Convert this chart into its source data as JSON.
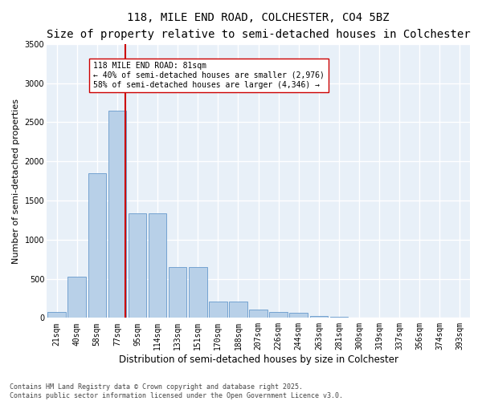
{
  "title": "118, MILE END ROAD, COLCHESTER, CO4 5BZ",
  "subtitle": "Size of property relative to semi-detached houses in Colchester",
  "xlabel": "Distribution of semi-detached houses by size in Colchester",
  "ylabel": "Number of semi-detached properties",
  "categories": [
    "21sqm",
    "40sqm",
    "58sqm",
    "77sqm",
    "95sqm",
    "114sqm",
    "133sqm",
    "151sqm",
    "170sqm",
    "188sqm",
    "207sqm",
    "226sqm",
    "244sqm",
    "263sqm",
    "281sqm",
    "300sqm",
    "319sqm",
    "337sqm",
    "356sqm",
    "374sqm",
    "393sqm"
  ],
  "values": [
    75,
    530,
    1850,
    2650,
    1340,
    1340,
    650,
    650,
    210,
    210,
    105,
    75,
    60,
    25,
    10,
    5,
    3,
    2,
    1,
    1,
    0
  ],
  "bar_color": "#b8d0e8",
  "bar_edge_color": "#6699cc",
  "bg_color": "#e8f0f8",
  "grid_color": "#ffffff",
  "vline_color": "#cc0000",
  "vline_x": 3.42,
  "annotation_text": "118 MILE END ROAD: 81sqm\n← 40% of semi-detached houses are smaller (2,976)\n58% of semi-detached houses are larger (4,346) →",
  "annotation_box_color": "#ffffff",
  "annotation_box_edge": "#cc0000",
  "ylim": [
    0,
    3500
  ],
  "yticks": [
    0,
    500,
    1000,
    1500,
    2000,
    2500,
    3000,
    3500
  ],
  "footnote": "Contains HM Land Registry data © Crown copyright and database right 2025.\nContains public sector information licensed under the Open Government Licence v3.0.",
  "title_fontsize": 10,
  "subtitle_fontsize": 8.5,
  "ylabel_fontsize": 8,
  "xlabel_fontsize": 8.5,
  "tick_fontsize": 7,
  "annotation_fontsize": 7,
  "footnote_fontsize": 6
}
